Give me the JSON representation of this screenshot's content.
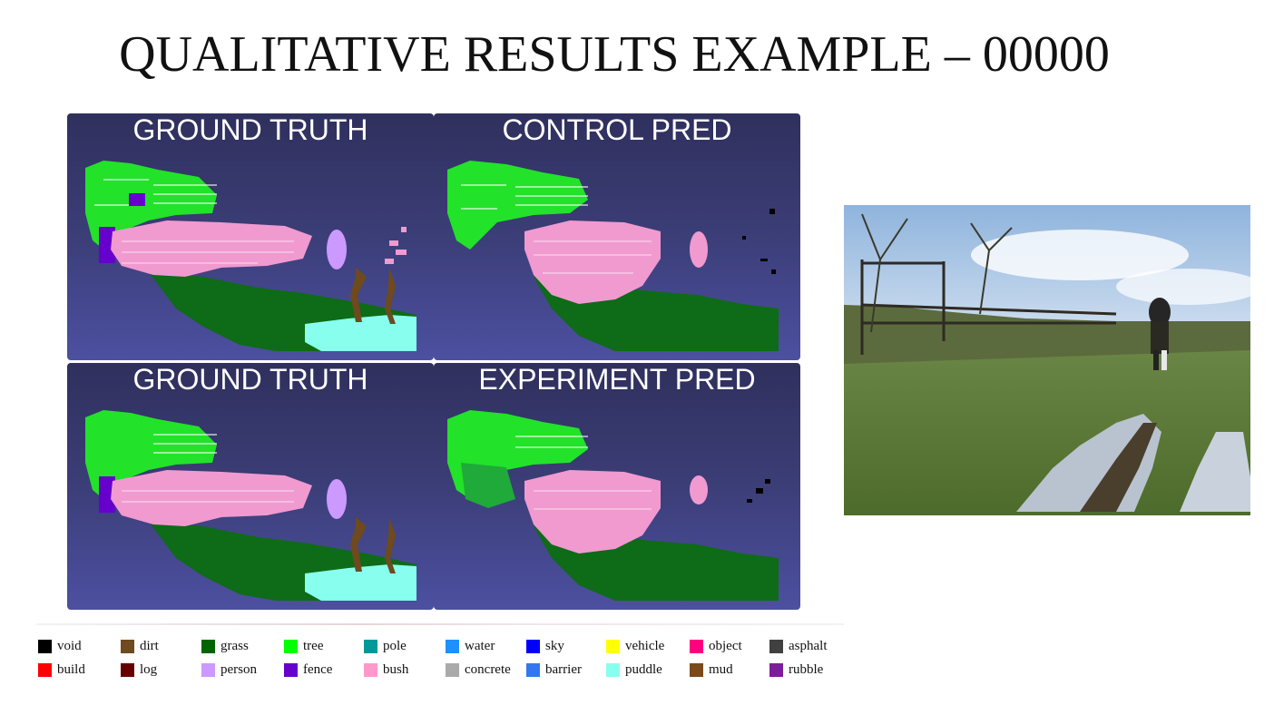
{
  "title": "QUALITATIVE RESULTS EXAMPLE – 00000",
  "panels": [
    {
      "label": "GROUND TRUTH"
    },
    {
      "label": "CONTROL PRED"
    },
    {
      "label": "GROUND TRUTH"
    },
    {
      "label": "EXPERIMENT PRED"
    }
  ],
  "legend": [
    {
      "label": "void",
      "color": "#000000"
    },
    {
      "label": "dirt",
      "color": "#6e4a1e"
    },
    {
      "label": "grass",
      "color": "#006400"
    },
    {
      "label": "tree",
      "color": "#00ff00"
    },
    {
      "label": "pole",
      "color": "#009999"
    },
    {
      "label": "water",
      "color": "#1e90ff"
    },
    {
      "label": "sky",
      "color": "#0000ff"
    },
    {
      "label": "vehicle",
      "color": "#ffff00"
    },
    {
      "label": "object",
      "color": "#ff007f"
    },
    {
      "label": "asphalt",
      "color": "#404040"
    },
    {
      "label": "build",
      "color": "#ff0000"
    },
    {
      "label": "log",
      "color": "#660000"
    },
    {
      "label": "person",
      "color": "#cc99ff"
    },
    {
      "label": "fence",
      "color": "#6600cc"
    },
    {
      "label": "bush",
      "color": "#ff99cc"
    },
    {
      "label": "concrete",
      "color": "#aaaaaa"
    },
    {
      "label": "barrier",
      "color": "#3377ee"
    },
    {
      "label": "puddle",
      "color": "#88ffee"
    },
    {
      "label": "mud",
      "color": "#7a4a1a"
    },
    {
      "label": "rubble",
      "color": "#7a1f99"
    }
  ]
}
